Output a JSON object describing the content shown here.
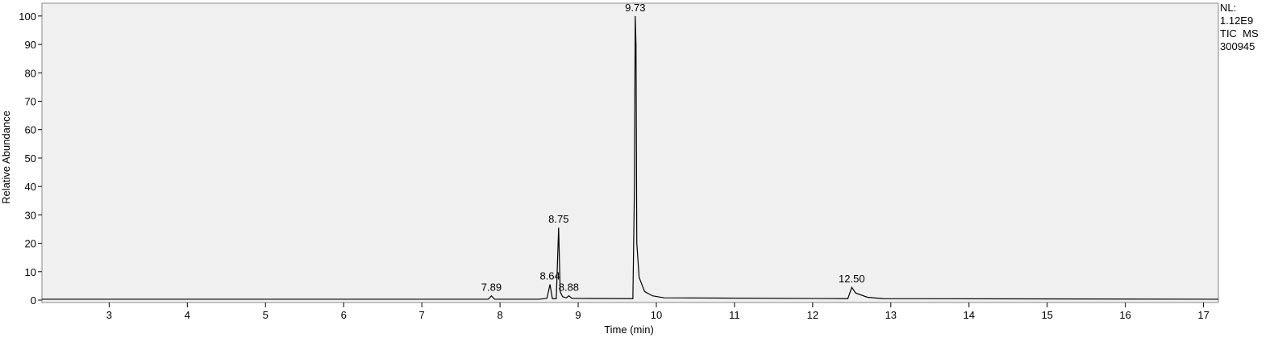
{
  "chart_data": {
    "type": "line",
    "x_label": "Time (min)",
    "y_label": "Relative Abundance",
    "info": [
      "NL:",
      "1.12E9",
      "TIC  MS",
      "300945"
    ],
    "x": [
      2.14,
      7.85,
      7.89,
      7.93,
      8.5,
      8.6,
      8.64,
      8.67,
      8.72,
      8.75,
      8.77,
      8.8,
      8.85,
      8.88,
      8.92,
      9.7,
      9.72,
      9.73,
      9.74,
      9.75,
      9.78,
      9.85,
      9.95,
      10.1,
      12.45,
      12.5,
      12.55,
      12.7,
      12.9,
      17.19
    ],
    "series": [
      {
        "color": "#000000",
        "values": [
          0.3,
          0.3,
          1.5,
          0.3,
          0.3,
          0.6,
          5.5,
          0.5,
          0.5,
          25.5,
          3,
          1.2,
          0.8,
          1.5,
          0.6,
          0.5,
          40,
          100,
          90,
          20,
          8,
          3,
          1.5,
          0.8,
          0.5,
          4.5,
          2.5,
          1,
          0.5,
          0.3
        ]
      }
    ],
    "peak_labels": [
      {
        "value": 7.89,
        "label": "7.89"
      },
      {
        "value": 8.64,
        "label": "8.64"
      },
      {
        "value": 8.75,
        "label": "8.75"
      },
      {
        "value": 8.88,
        "label": "8.88"
      },
      {
        "value": 9.73,
        "label": "9.73"
      },
      {
        "value": 12.5,
        "label": "12.50"
      }
    ],
    "xlim": [
      2.14,
      17.19
    ],
    "ylim": [
      0,
      104.5
    ],
    "xticks": [
      3,
      4,
      5,
      6,
      7,
      8,
      9,
      10,
      11,
      12,
      13,
      14,
      15,
      16,
      17
    ],
    "yticks": [
      0,
      10,
      20,
      30,
      40,
      50,
      60,
      70,
      80,
      90,
      100
    ],
    "background": "#f0f0f0"
  }
}
